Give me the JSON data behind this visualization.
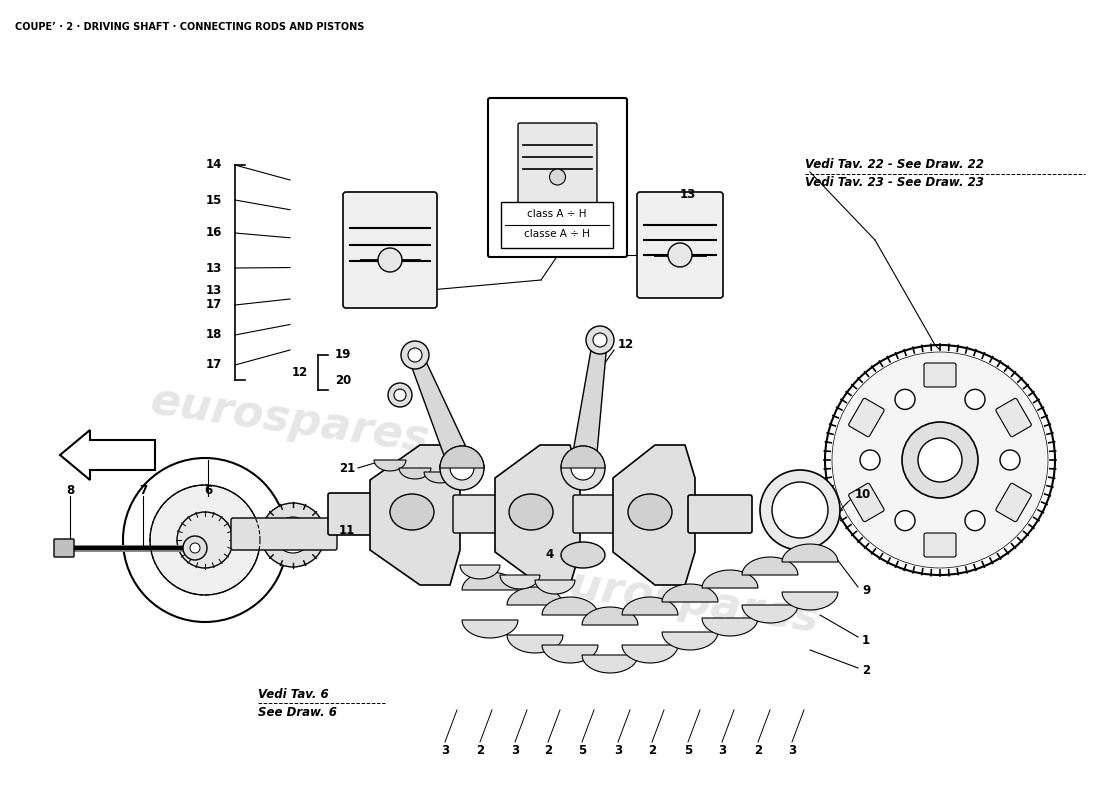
{
  "title": "COUPE’ · 2 · DRIVING SHAFT · CONNECTING RODS AND PISTONS",
  "background_color": "#ffffff",
  "title_fontsize": 7,
  "watermark_text": "eurospares",
  "vedi_22": "Vedi Tav. 22 - See Draw. 22",
  "vedi_23": "Vedi Tav. 23 - See Draw. 23",
  "vedi_6_line1": "Vedi Tav. 6",
  "vedi_6_line2": "See Draw. 6",
  "classe_text1": "classe A ÷ H",
  "classe_text2": "class A ÷ H"
}
